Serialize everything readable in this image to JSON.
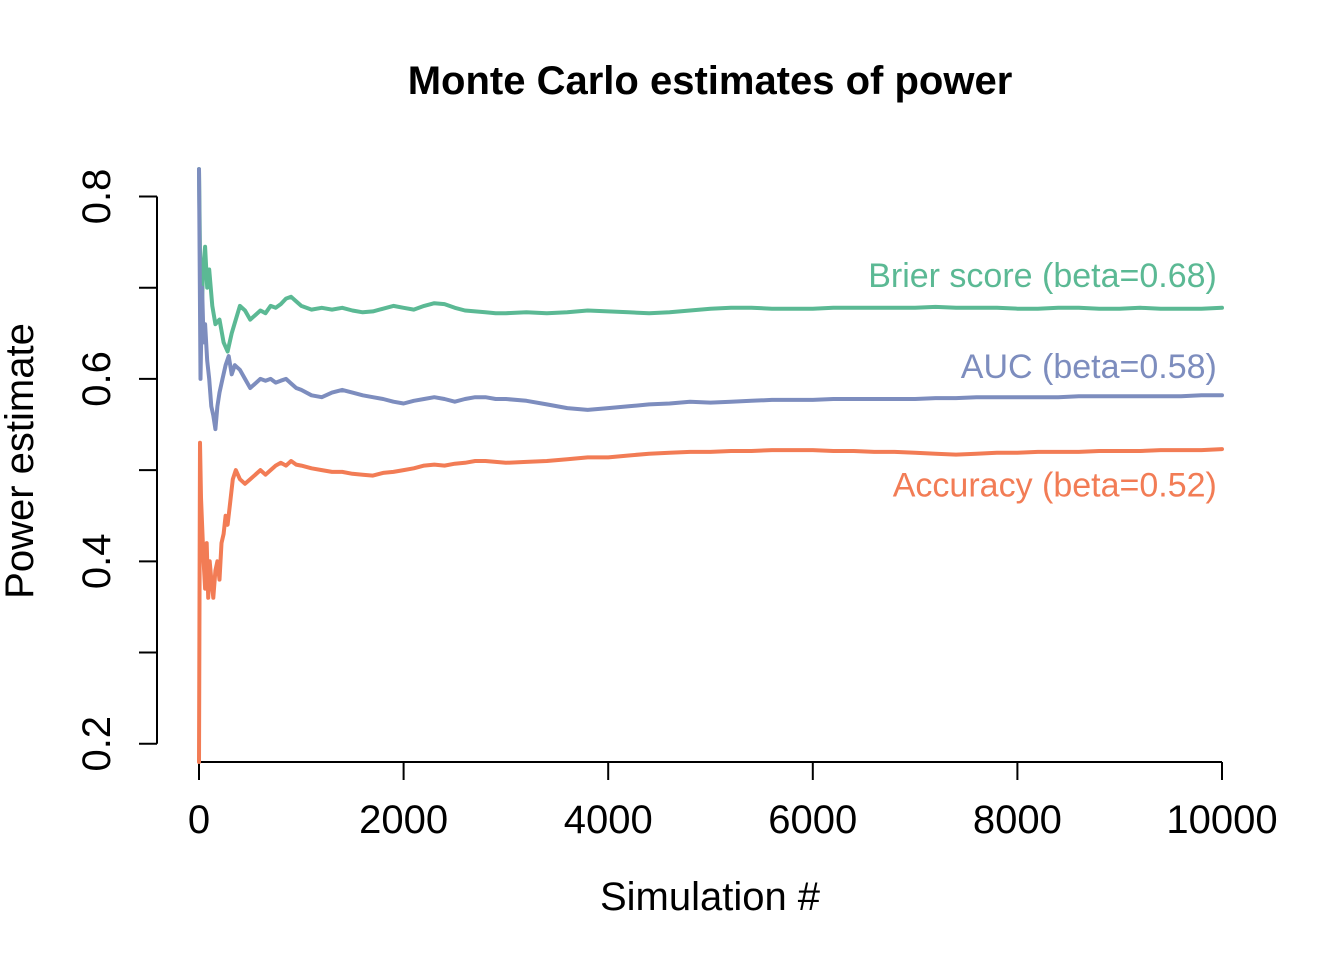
{
  "chart_data": {
    "type": "line",
    "title": "Monte Carlo estimates of power",
    "xlabel": "Simulation #",
    "ylabel": "Power estimate",
    "xlim": [
      0,
      10000
    ],
    "ylim": [
      0.18,
      0.84
    ],
    "x_ticks": [
      0,
      2000,
      4000,
      6000,
      8000,
      10000
    ],
    "x_tick_labels": [
      "0",
      "2000",
      "4000",
      "6000",
      "8000",
      "10000"
    ],
    "y_ticks": [
      0.2,
      0.3,
      0.4,
      0.5,
      0.6,
      0.7,
      0.8
    ],
    "y_tick_labels": [
      "0.2",
      "",
      "0.4",
      "",
      "0.6",
      "",
      "0.8"
    ],
    "grid": false,
    "legend": "none",
    "series": [
      {
        "name": "Brier score (beta=0.68)",
        "color": "#5bb994",
        "x": [
          0,
          20,
          40,
          60,
          80,
          100,
          130,
          160,
          200,
          240,
          280,
          320,
          360,
          400,
          450,
          500,
          550,
          600,
          650,
          700,
          750,
          800,
          850,
          900,
          950,
          1000,
          1100,
          1200,
          1300,
          1400,
          1500,
          1600,
          1700,
          1800,
          1900,
          2000,
          2100,
          2200,
          2300,
          2400,
          2500,
          2600,
          2700,
          2800,
          2900,
          3000,
          3200,
          3400,
          3600,
          3800,
          4000,
          4200,
          4400,
          4600,
          4800,
          5000,
          5200,
          5400,
          5600,
          5800,
          6000,
          6200,
          6400,
          6600,
          6800,
          7000,
          7200,
          7400,
          7600,
          7800,
          8000,
          8200,
          8400,
          8600,
          8800,
          9000,
          9200,
          9400,
          9600,
          9800,
          10000
        ],
        "values": [
          0.83,
          0.65,
          0.72,
          0.745,
          0.7,
          0.72,
          0.68,
          0.66,
          0.665,
          0.64,
          0.63,
          0.65,
          0.665,
          0.68,
          0.675,
          0.665,
          0.67,
          0.675,
          0.672,
          0.68,
          0.678,
          0.682,
          0.688,
          0.69,
          0.685,
          0.68,
          0.676,
          0.678,
          0.676,
          0.678,
          0.675,
          0.673,
          0.674,
          0.677,
          0.68,
          0.678,
          0.676,
          0.68,
          0.683,
          0.682,
          0.678,
          0.675,
          0.674,
          0.673,
          0.672,
          0.672,
          0.673,
          0.672,
          0.673,
          0.675,
          0.674,
          0.673,
          0.672,
          0.673,
          0.675,
          0.677,
          0.678,
          0.678,
          0.677,
          0.677,
          0.677,
          0.678,
          0.678,
          0.678,
          0.678,
          0.678,
          0.679,
          0.678,
          0.678,
          0.678,
          0.677,
          0.677,
          0.678,
          0.678,
          0.677,
          0.677,
          0.678,
          0.677,
          0.677,
          0.677,
          0.678
        ]
      },
      {
        "name": "AUC (beta=0.58)",
        "color": "#7d8dbe",
        "x": [
          0,
          15,
          30,
          45,
          60,
          80,
          100,
          120,
          140,
          160,
          180,
          200,
          230,
          260,
          290,
          320,
          350,
          400,
          450,
          500,
          550,
          600,
          650,
          700,
          750,
          800,
          850,
          900,
          950,
          1000,
          1100,
          1200,
          1300,
          1400,
          1500,
          1600,
          1700,
          1800,
          1900,
          2000,
          2100,
          2200,
          2300,
          2400,
          2500,
          2600,
          2700,
          2800,
          2900,
          3000,
          3200,
          3400,
          3600,
          3800,
          4000,
          4200,
          4400,
          4600,
          4800,
          5000,
          5200,
          5400,
          5600,
          5800,
          6000,
          6200,
          6400,
          6600,
          6800,
          7000,
          7200,
          7400,
          7600,
          7800,
          8000,
          8200,
          8400,
          8600,
          8800,
          9000,
          9200,
          9400,
          9600,
          9800,
          10000
        ],
        "values": [
          0.83,
          0.6,
          0.7,
          0.64,
          0.66,
          0.62,
          0.6,
          0.57,
          0.56,
          0.545,
          0.57,
          0.585,
          0.6,
          0.615,
          0.625,
          0.605,
          0.615,
          0.61,
          0.6,
          0.59,
          0.595,
          0.6,
          0.598,
          0.6,
          0.596,
          0.598,
          0.6,
          0.595,
          0.59,
          0.588,
          0.582,
          0.58,
          0.585,
          0.588,
          0.585,
          0.582,
          0.58,
          0.578,
          0.575,
          0.573,
          0.576,
          0.578,
          0.58,
          0.578,
          0.575,
          0.578,
          0.58,
          0.58,
          0.578,
          0.578,
          0.576,
          0.572,
          0.568,
          0.566,
          0.568,
          0.57,
          0.572,
          0.573,
          0.575,
          0.574,
          0.575,
          0.576,
          0.577,
          0.577,
          0.577,
          0.578,
          0.578,
          0.578,
          0.578,
          0.578,
          0.579,
          0.579,
          0.58,
          0.58,
          0.58,
          0.58,
          0.58,
          0.581,
          0.581,
          0.581,
          0.581,
          0.581,
          0.581,
          0.582,
          0.582
        ]
      },
      {
        "name": "Accuracy (beta=0.52)",
        "color": "#f27c55",
        "x": [
          0,
          10,
          20,
          30,
          45,
          60,
          75,
          90,
          105,
          120,
          140,
          160,
          180,
          200,
          220,
          240,
          260,
          280,
          300,
          330,
          360,
          400,
          450,
          500,
          550,
          600,
          650,
          700,
          750,
          800,
          850,
          900,
          950,
          1000,
          1100,
          1200,
          1300,
          1400,
          1500,
          1600,
          1700,
          1800,
          1900,
          2000,
          2100,
          2200,
          2300,
          2400,
          2500,
          2600,
          2700,
          2800,
          2900,
          3000,
          3200,
          3400,
          3600,
          3800,
          4000,
          4200,
          4400,
          4600,
          4800,
          5000,
          5200,
          5400,
          5600,
          5800,
          6000,
          6200,
          6400,
          6600,
          6800,
          7000,
          7200,
          7400,
          7600,
          7800,
          8000,
          8200,
          8400,
          8600,
          8800,
          9000,
          9200,
          9400,
          9600,
          9800,
          10000
        ],
        "values": [
          0.18,
          0.53,
          0.47,
          0.44,
          0.4,
          0.37,
          0.42,
          0.36,
          0.4,
          0.38,
          0.36,
          0.39,
          0.4,
          0.38,
          0.42,
          0.43,
          0.45,
          0.44,
          0.46,
          0.49,
          0.5,
          0.49,
          0.485,
          0.49,
          0.495,
          0.5,
          0.495,
          0.5,
          0.505,
          0.508,
          0.505,
          0.51,
          0.506,
          0.505,
          0.502,
          0.5,
          0.498,
          0.498,
          0.496,
          0.495,
          0.494,
          0.497,
          0.498,
          0.5,
          0.502,
          0.505,
          0.506,
          0.505,
          0.507,
          0.508,
          0.51,
          0.51,
          0.509,
          0.508,
          0.509,
          0.51,
          0.512,
          0.514,
          0.514,
          0.516,
          0.518,
          0.519,
          0.52,
          0.52,
          0.521,
          0.521,
          0.522,
          0.522,
          0.522,
          0.521,
          0.521,
          0.52,
          0.52,
          0.519,
          0.518,
          0.517,
          0.518,
          0.519,
          0.519,
          0.52,
          0.52,
          0.52,
          0.521,
          0.521,
          0.521,
          0.522,
          0.522,
          0.522,
          0.523
        ]
      }
    ],
    "annotations": [
      {
        "text": "Brier score (beta=0.68)",
        "x": 9950,
        "y": 0.701,
        "color": "#5bb994"
      },
      {
        "text": "AUC (beta=0.58)",
        "x": 9950,
        "y": 0.601,
        "color": "#7d8dbe"
      },
      {
        "text": "Accuracy (beta=0.52)",
        "x": 9950,
        "y": 0.471,
        "color": "#f27c55"
      }
    ]
  }
}
